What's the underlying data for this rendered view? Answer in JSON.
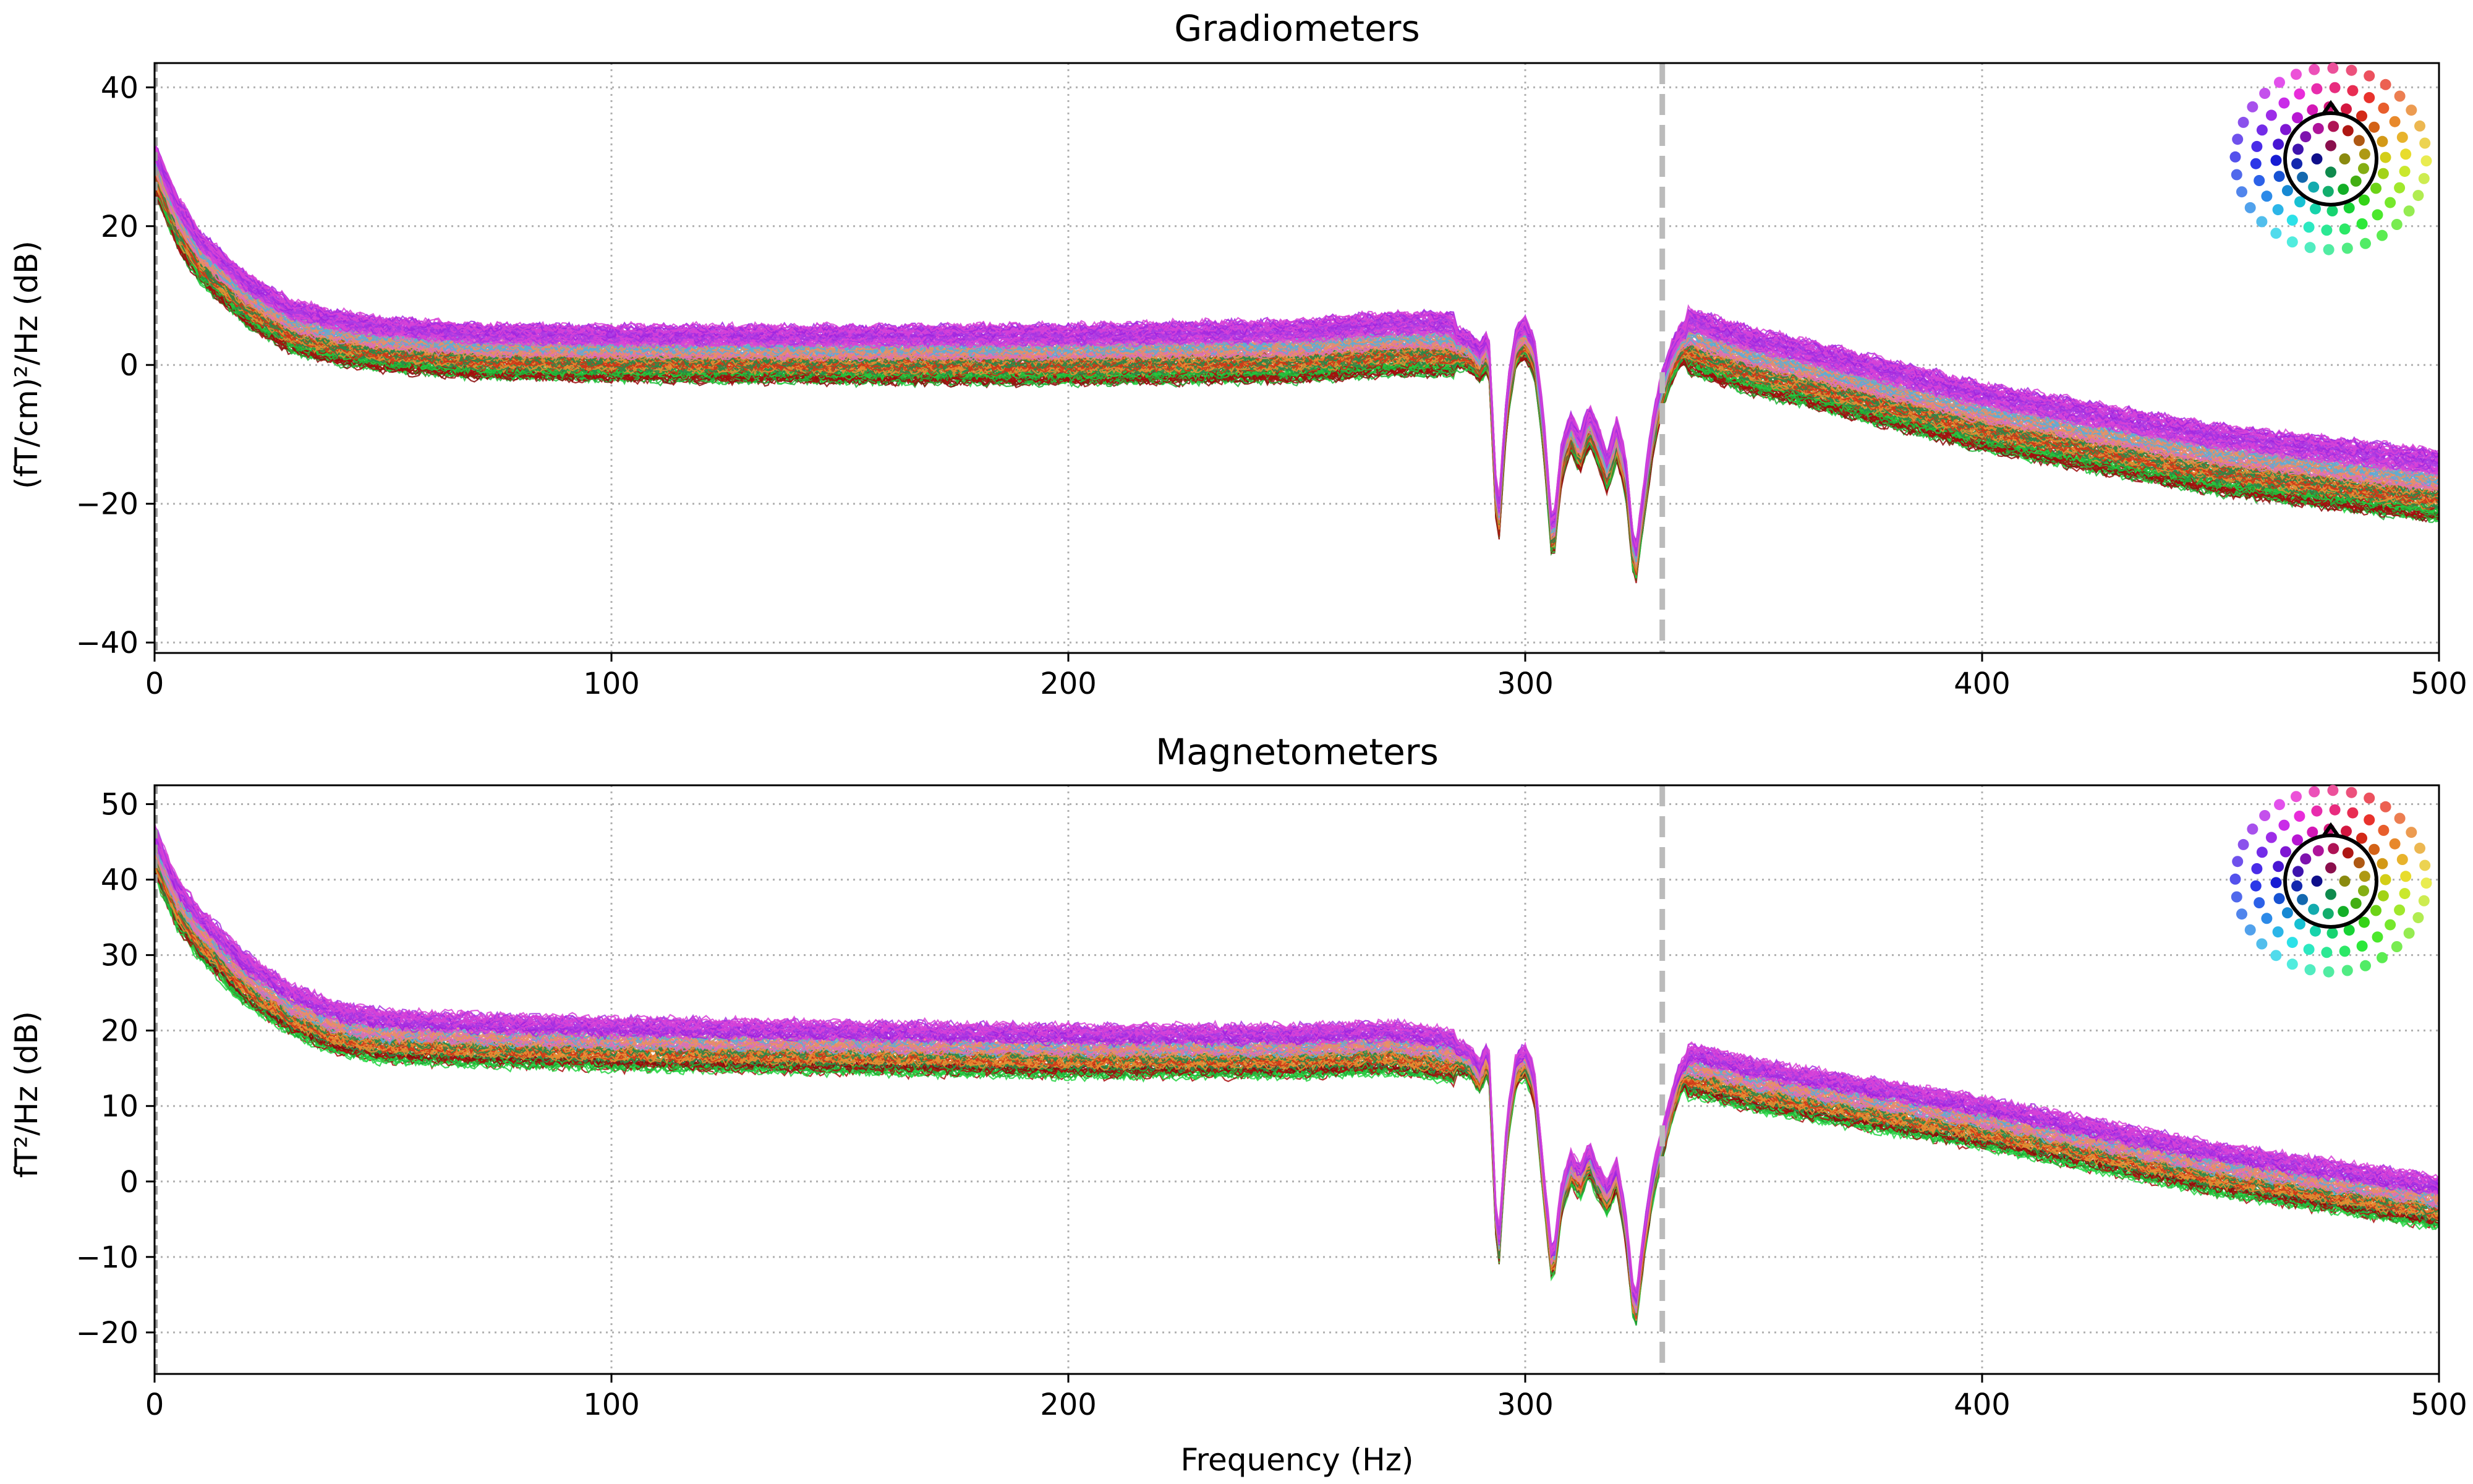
{
  "figure": {
    "background": "#ffffff"
  },
  "chart_data": [
    {
      "type": "line",
      "title": "Gradiometers",
      "xlabel": "",
      "ylabel": "(fT/cm)²/Hz (dB)",
      "xlim": [
        0,
        500
      ],
      "ylim": [
        -41.5,
        43.5
      ],
      "xticks": [
        0,
        100,
        200,
        300,
        400,
        500
      ],
      "yticks": [
        -40,
        -20,
        0,
        20,
        40
      ],
      "grid": true,
      "legend": "top-right sensor topography inset",
      "vline": {
        "x": 330,
        "style": "dashed",
        "color": "#bbbbbb"
      },
      "n_channels": 204,
      "series_profile": {
        "x": [
          0,
          5,
          10,
          20,
          30,
          40,
          50,
          70,
          100,
          150,
          200,
          250,
          270,
          283,
          288,
          290,
          292,
          294,
          296,
          298,
          300,
          302,
          304,
          306,
          308,
          310,
          312,
          314,
          316,
          318,
          320,
          322,
          324,
          326,
          328,
          330,
          332,
          334,
          336,
          340,
          350,
          360,
          400,
          450,
          500
        ],
        "mean": [
          28,
          20,
          15,
          9,
          5,
          3.5,
          2.5,
          1.5,
          1.2,
          1.0,
          1.0,
          1.5,
          2.5,
          2.5,
          1.5,
          0,
          2,
          -25,
          -6,
          2.5,
          3.5,
          1.0,
          -10,
          -27,
          -14,
          -10,
          -13,
          -9,
          -12,
          -16,
          -11,
          -16,
          -30,
          -20,
          -10,
          -4,
          0,
          2.5,
          3,
          2,
          0,
          -1.5,
          -8,
          -14,
          -18
        ],
        "spread_min": [
          -3,
          -4.5
        ],
        "spread_max": [
          4,
          5.5
        ]
      }
    },
    {
      "type": "line",
      "title": "Magnetometers",
      "xlabel": "Frequency (Hz)",
      "ylabel": "fT²/Hz (dB)",
      "xlim": [
        0,
        500
      ],
      "ylim": [
        -25.5,
        52.5
      ],
      "xticks": [
        0,
        100,
        200,
        300,
        400,
        500
      ],
      "yticks": [
        -20,
        -10,
        0,
        10,
        20,
        30,
        40,
        50
      ],
      "grid": true,
      "legend": "top-right sensor topography inset",
      "vline": {
        "x": 330,
        "style": "dashed",
        "color": "#bbbbbb"
      },
      "n_channels": 102,
      "series_profile": {
        "x": [
          0,
          5,
          10,
          20,
          30,
          40,
          50,
          70,
          100,
          150,
          200,
          250,
          270,
          283,
          288,
          290,
          292,
          294,
          296,
          298,
          300,
          302,
          304,
          306,
          308,
          310,
          312,
          314,
          316,
          318,
          320,
          322,
          324,
          326,
          328,
          330,
          332,
          334,
          336,
          340,
          350,
          360,
          400,
          450,
          500
        ],
        "mean": [
          44,
          37,
          33,
          27,
          23,
          20.5,
          19.5,
          19,
          18.5,
          18,
          17.5,
          17.5,
          18,
          17,
          16,
          14,
          17,
          -11,
          7,
          15,
          16,
          13,
          0,
          -12,
          -2,
          2,
          0,
          3,
          0,
          -2,
          1,
          -6,
          -18,
          -8,
          0,
          5,
          10,
          14,
          15,
          14.5,
          13,
          12,
          8,
          2,
          -2.5
        ],
        "spread_min": [
          -3.5,
          -3.5
        ],
        "spread_max": [
          3,
          3
        ]
      }
    }
  ]
}
